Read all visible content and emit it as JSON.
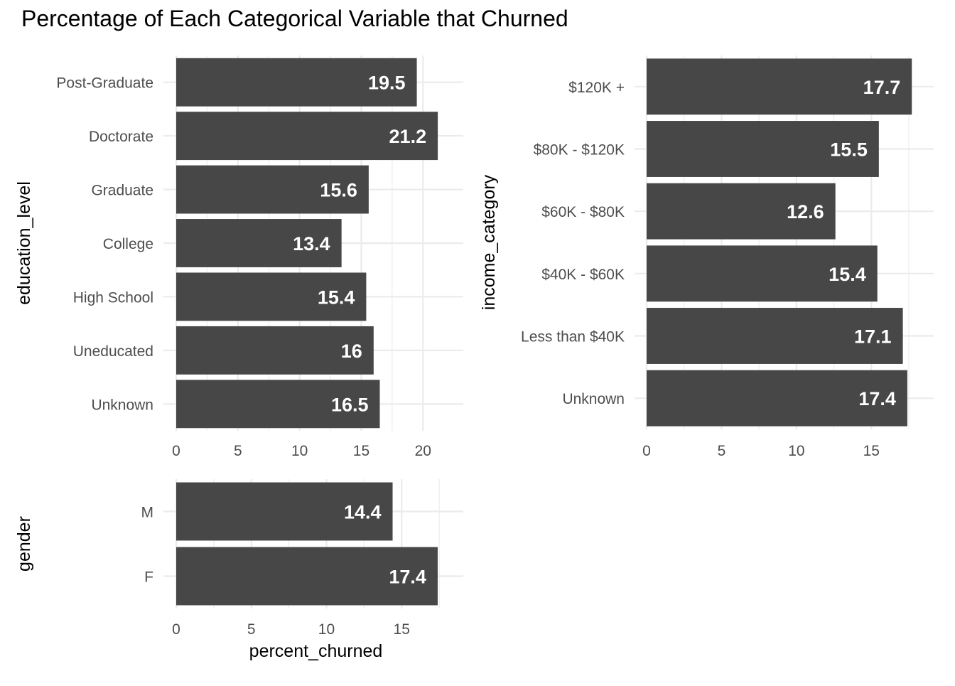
{
  "title": "Percentage of Each Categorical Variable that Churned",
  "colors": {
    "bar": "#474747",
    "grid": "#ebebeb",
    "label": "#ffffff",
    "tick": "#4d4d4d"
  },
  "chart_data": [
    {
      "id": "education",
      "type": "bar",
      "orientation": "horizontal",
      "ylabel": "education_level",
      "xlabel": "",
      "categories": [
        "Post-Graduate",
        "Doctorate",
        "Graduate",
        "College",
        "High School",
        "Uneducated",
        "Unknown"
      ],
      "values": [
        19.5,
        21.2,
        15.6,
        13.4,
        15.4,
        16,
        16.5
      ],
      "data_labels": [
        "19.5",
        "21.2",
        "15.6",
        "13.4",
        "15.4",
        "16",
        "16.5"
      ],
      "xticks": [
        0,
        5,
        10,
        15,
        20
      ],
      "xtick_labels": [
        "0",
        "5",
        "10",
        "15",
        "20"
      ],
      "xlim": [
        0,
        22
      ],
      "grid": true
    },
    {
      "id": "income",
      "type": "bar",
      "orientation": "horizontal",
      "ylabel": "income_category",
      "xlabel": "",
      "categories": [
        "$120K +",
        "$80K - $120K",
        "$60K - $80K",
        "$40K - $60K",
        "Less than $40K",
        "Unknown"
      ],
      "values": [
        17.7,
        15.5,
        12.6,
        15.4,
        17.1,
        17.4
      ],
      "data_labels": [
        "17.7",
        "15.5",
        "12.6",
        "15.4",
        "17.1",
        "17.4"
      ],
      "xticks": [
        0,
        5,
        10,
        15
      ],
      "xtick_labels": [
        "0",
        "5",
        "10",
        "15"
      ],
      "xlim": [
        0,
        18.4
      ],
      "grid": true
    },
    {
      "id": "gender",
      "type": "bar",
      "orientation": "horizontal",
      "ylabel": "gender",
      "xlabel": "percent_churned",
      "categories": [
        "M",
        "F"
      ],
      "values": [
        14.4,
        17.4
      ],
      "data_labels": [
        "14.4",
        "17.4"
      ],
      "xticks": [
        0,
        5,
        10,
        15
      ],
      "xtick_labels": [
        "0",
        "5",
        "10",
        "15"
      ],
      "xlim": [
        0,
        18.3
      ],
      "grid": true
    }
  ]
}
